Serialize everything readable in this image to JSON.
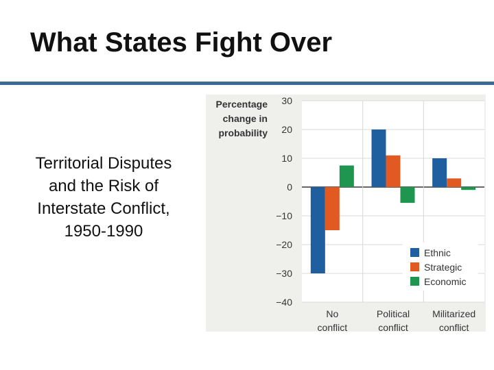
{
  "slide": {
    "title": "What States Fight Over",
    "caption_lines": [
      "Territorial Disputes",
      "and the Risk of",
      "Interstate Conflict,",
      "1950-1990"
    ],
    "rule_color": "#3d6a92"
  },
  "chart_data": {
    "type": "bar",
    "ylabel_lines": [
      "Percentage",
      "change in",
      "probability"
    ],
    "categories": [
      {
        "lines": [
          "No",
          "conflict"
        ]
      },
      {
        "lines": [
          "Political",
          "conflict"
        ]
      },
      {
        "lines": [
          "Militarized",
          "conflict"
        ]
      }
    ],
    "series": [
      {
        "name": "Ethnic",
        "color": "#1f5fa0",
        "values": [
          -30,
          20,
          10
        ]
      },
      {
        "name": "Strategic",
        "color": "#e05a22",
        "values": [
          -15,
          11,
          3
        ]
      },
      {
        "name": "Economic",
        "color": "#1e9650",
        "values": [
          7.5,
          -5.5,
          -1
        ]
      }
    ],
    "ylim": [
      -40,
      30
    ],
    "yticks": [
      "30",
      "20",
      "10",
      "0",
      "−10",
      "−20",
      "−30",
      "−40"
    ],
    "grid": true,
    "legend_position": "bottom-right",
    "background": "#efefec"
  }
}
